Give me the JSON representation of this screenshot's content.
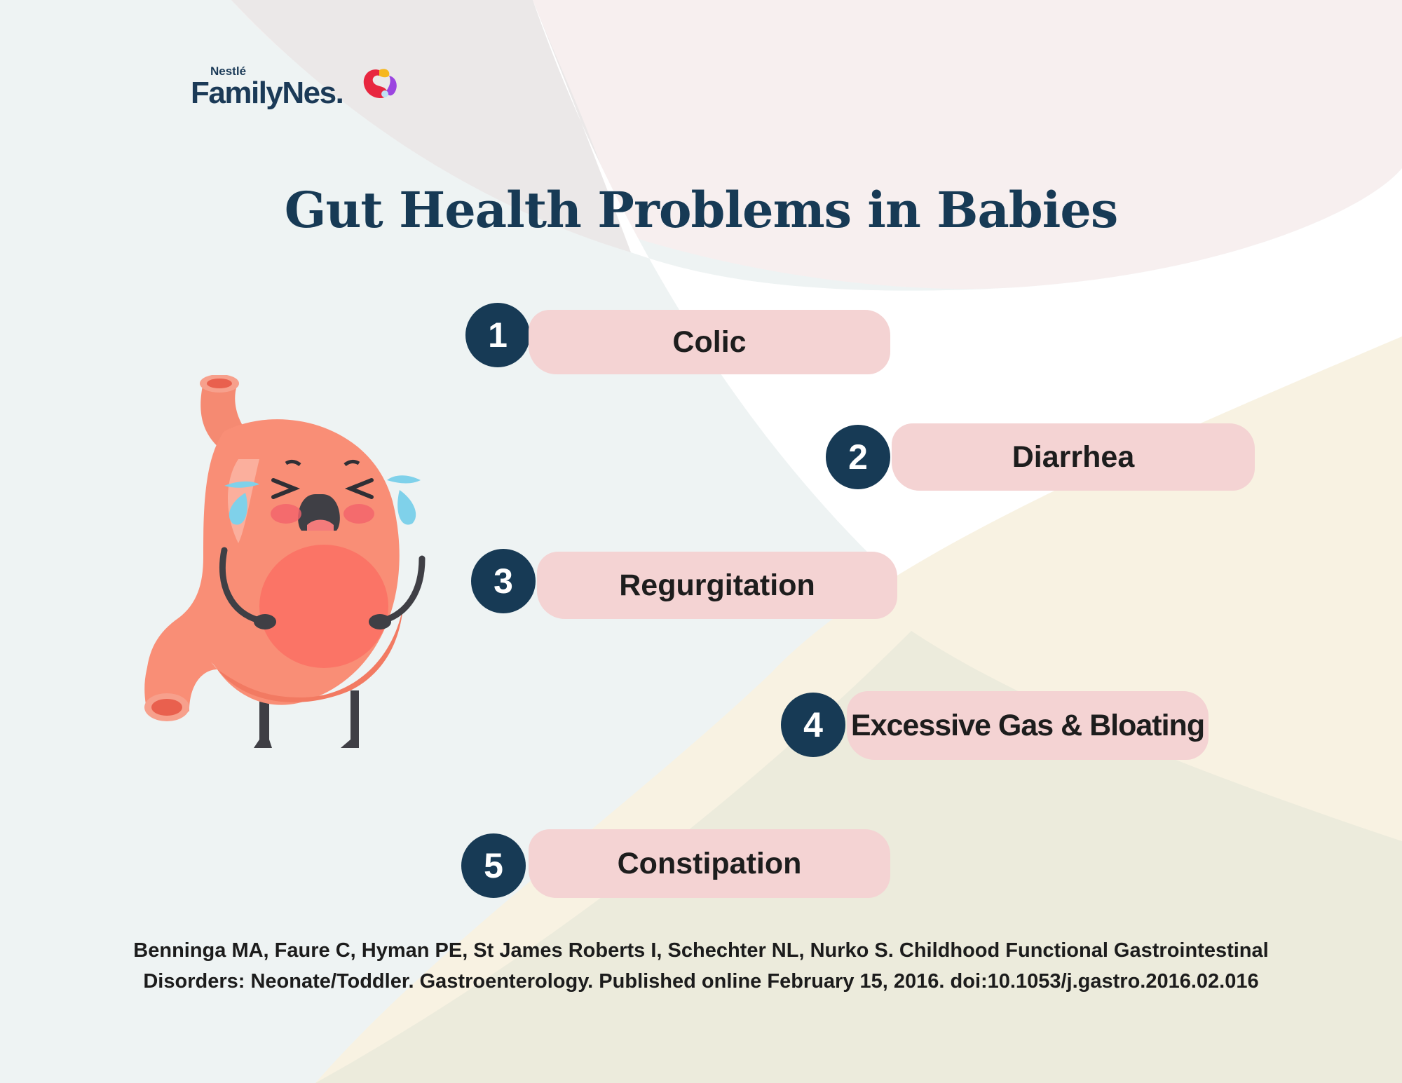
{
  "brand": {
    "small": "Nestlé",
    "name": "FamilyNes."
  },
  "title": "Gut Health Problems in Babies",
  "problems": [
    {
      "number": "1",
      "label": "Colic"
    },
    {
      "number": "2",
      "label": "Diarrhea"
    },
    {
      "number": "3",
      "label": "Regurgitation"
    },
    {
      "number": "4",
      "label": "Excessive Gas & Bloating"
    },
    {
      "number": "5",
      "label": "Constipation"
    }
  ],
  "citation": {
    "line1": "Benninga MA, Faure C, Hyman PE, St James Roberts I, Schechter NL, Nurko S. Childhood Functional Gastrointestinal",
    "line2": "Disorders: Neonate/Toddler. Gastroenterology. Published online February 15, 2016. doi:10.1053/j.gastro.2016.02.016"
  },
  "colors": {
    "navy": "#173a55",
    "pill": "#f4d3d3",
    "stomach": "#f98e76"
  },
  "icons": [
    "crying-stomach-illustration",
    "familynes-logo-mark"
  ]
}
